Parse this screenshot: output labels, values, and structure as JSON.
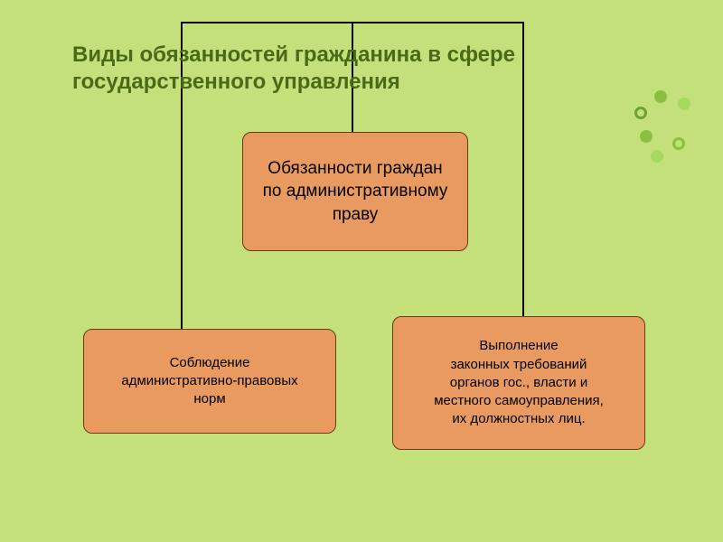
{
  "background_color": "#c4e07a",
  "title": {
    "text": "Виды обязанностей гражданина в сфере государственного управления",
    "fontsize": 24,
    "color": "#4a6a18"
  },
  "boxes": {
    "top": {
      "text": "Обязанности граждан\nпо административному праву",
      "fontsize": 19,
      "fill": "#e99a60",
      "border": "#6b3b0f",
      "text_color": "#000000"
    },
    "left": {
      "text": "Соблюдение\nадминистративно-правовых\nнорм",
      "fontsize": 15,
      "fill": "#e99a60",
      "border": "#6b3b0f",
      "text_color": "#000000"
    },
    "right": {
      "text": "Выполнение\nзаконных требований\nорганов гос., власти и\nместного самоуправления,\nих должностных лиц.",
      "fontsize": 15,
      "fill": "#e99a60",
      "border": "#6b3b0f",
      "text_color": "#000000"
    }
  },
  "connectors": {
    "color": "#000000"
  },
  "decor_dots": {
    "colors": [
      "#8bbf3f",
      "#a6d95f",
      "#6fa12e",
      "#c4e07a",
      "#8bbf3f"
    ]
  }
}
